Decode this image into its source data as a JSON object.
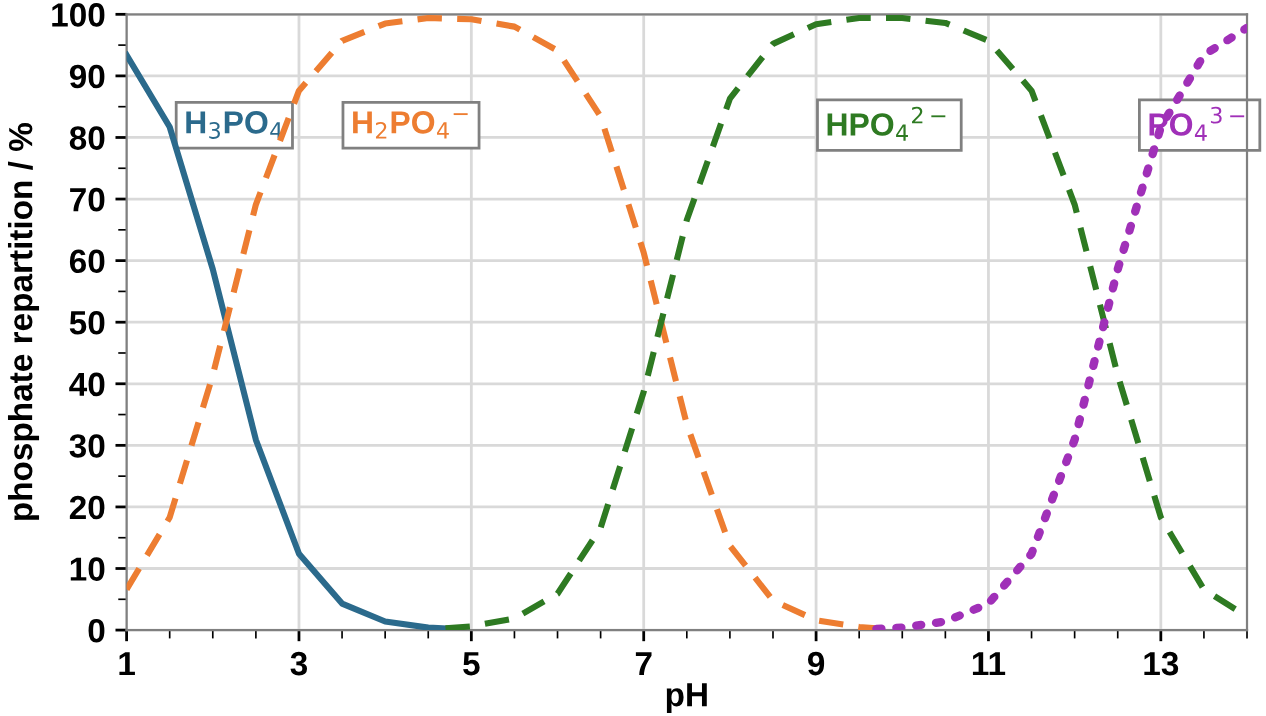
{
  "chart_data": {
    "type": "line",
    "xlabel": "pH",
    "ylabel": "phosphate repartition / %",
    "xlim": [
      1,
      14
    ],
    "ylim": [
      0,
      100
    ],
    "xticks": [
      1,
      3,
      5,
      7,
      9,
      11,
      13
    ],
    "yticks": [
      0,
      10,
      20,
      30,
      40,
      50,
      60,
      70,
      80,
      90,
      100
    ],
    "grid": true,
    "legend": false,
    "marker": "none",
    "series": [
      {
        "name": "H$_{3}$PO$_{4}$",
        "color": "#2b6a8c",
        "line_style": "solid",
        "x": [
          1,
          1.5,
          2,
          2.5,
          3,
          3.5,
          4,
          4.5,
          4.8
        ],
        "values": [
          93.4,
          81.7,
          58.6,
          30.9,
          12.4,
          4.3,
          1.4,
          0.4,
          0.2
        ]
      },
      {
        "name": "H$_{2}$PO$_{4}$$^{−}$",
        "color": "#ed7d31",
        "line_style": "dashed",
        "x": [
          1,
          1.5,
          2,
          2.5,
          3,
          3.5,
          4,
          4.5,
          5,
          5.5,
          6,
          6.5,
          7,
          7.5,
          8,
          8.5,
          9,
          9.5,
          9.7
        ],
        "values": [
          6.6,
          18.3,
          41.4,
          69.1,
          87.6,
          95.7,
          98.5,
          99.4,
          99.2,
          98.0,
          94.1,
          83.4,
          61.3,
          33.4,
          13.7,
          4.8,
          1.6,
          0.5,
          0.3
        ]
      },
      {
        "name": "HPO$_{4}$$^{2−}$",
        "color": "#2e7a22",
        "line_style": "dashed",
        "x": [
          4.7,
          5,
          5.5,
          6,
          6.5,
          7,
          7.5,
          8,
          8.5,
          9,
          9.5,
          10,
          10.5,
          11,
          11.5,
          12,
          12.5,
          13,
          13.5,
          14
        ],
        "values": [
          0.3,
          0.6,
          1.9,
          5.9,
          16.6,
          38.7,
          66.6,
          86.3,
          95.2,
          98.4,
          99.4,
          99.4,
          98.6,
          95.7,
          87.6,
          69.1,
          41.4,
          18.3,
          6.6,
          2.2
        ]
      },
      {
        "name": "PO$_{4}$$^{3−}$",
        "color": "#a030b8",
        "line_style": "dotted",
        "x": [
          9.7,
          10,
          10.5,
          11,
          11.5,
          12,
          12.5,
          13,
          13.5,
          14
        ],
        "values": [
          0.2,
          0.4,
          1.4,
          4.3,
          12.4,
          30.9,
          58.6,
          81.7,
          93.4,
          97.8
        ]
      }
    ]
  }
}
